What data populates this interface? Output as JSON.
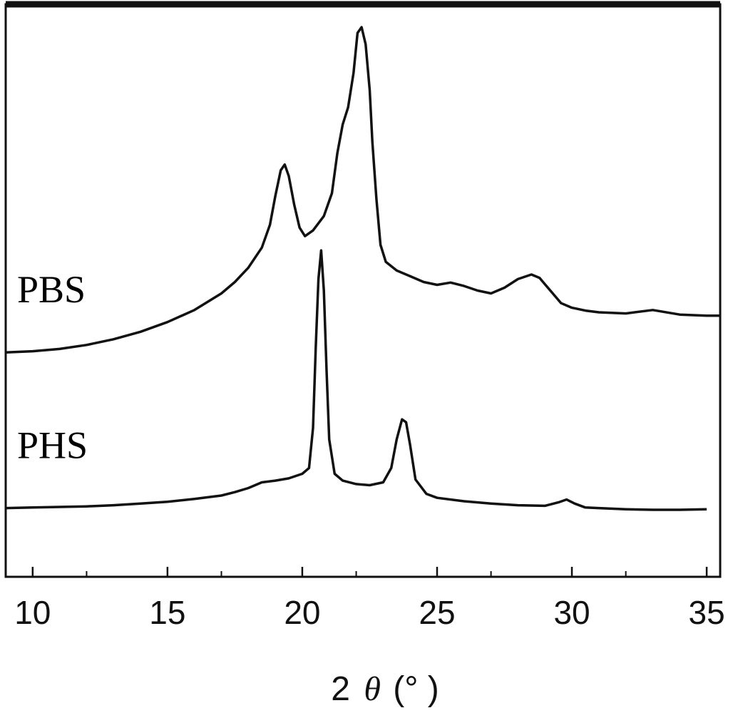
{
  "chart_data": {
    "type": "line",
    "xlabel": "2θ(°  )",
    "xlabel_parts": {
      "prefix": "2",
      "symbol": "θ",
      "suffix": "(°  )"
    },
    "x_ticks": [
      10,
      15,
      20,
      25,
      30,
      35
    ],
    "x_minor_ticks": [
      12,
      17,
      22,
      27,
      32
    ],
    "xlim": [
      9,
      35.5
    ],
    "ylim": [
      0,
      1
    ],
    "y_ticks_shown": false,
    "grid": false,
    "legend": "none (series names placed inline at left)",
    "colors": {
      "line": "#111111",
      "frame": "#111111",
      "background": "#ffffff"
    },
    "series": [
      {
        "name": "PBS",
        "points": [
          [
            9.0,
            0.392
          ],
          [
            10.0,
            0.394
          ],
          [
            11.0,
            0.398
          ],
          [
            12.0,
            0.405
          ],
          [
            13.0,
            0.415
          ],
          [
            14.0,
            0.428
          ],
          [
            15.0,
            0.445
          ],
          [
            16.0,
            0.466
          ],
          [
            17.0,
            0.495
          ],
          [
            17.5,
            0.515
          ],
          [
            18.0,
            0.54
          ],
          [
            18.5,
            0.575
          ],
          [
            18.8,
            0.615
          ],
          [
            19.0,
            0.665
          ],
          [
            19.2,
            0.71
          ],
          [
            19.35,
            0.72
          ],
          [
            19.5,
            0.7
          ],
          [
            19.7,
            0.65
          ],
          [
            19.9,
            0.61
          ],
          [
            20.1,
            0.595
          ],
          [
            20.4,
            0.605
          ],
          [
            20.8,
            0.63
          ],
          [
            21.1,
            0.67
          ],
          [
            21.3,
            0.74
          ],
          [
            21.5,
            0.79
          ],
          [
            21.7,
            0.82
          ],
          [
            21.9,
            0.88
          ],
          [
            22.05,
            0.95
          ],
          [
            22.2,
            0.96
          ],
          [
            22.35,
            0.93
          ],
          [
            22.5,
            0.85
          ],
          [
            22.6,
            0.76
          ],
          [
            22.75,
            0.66
          ],
          [
            22.9,
            0.58
          ],
          [
            23.1,
            0.55
          ],
          [
            23.5,
            0.535
          ],
          [
            24.0,
            0.525
          ],
          [
            24.5,
            0.515
          ],
          [
            25.0,
            0.51
          ],
          [
            25.5,
            0.514
          ],
          [
            26.0,
            0.508
          ],
          [
            26.5,
            0.5
          ],
          [
            27.0,
            0.495
          ],
          [
            27.5,
            0.505
          ],
          [
            28.0,
            0.52
          ],
          [
            28.5,
            0.528
          ],
          [
            28.8,
            0.522
          ],
          [
            29.2,
            0.5
          ],
          [
            29.6,
            0.478
          ],
          [
            30.0,
            0.47
          ],
          [
            30.5,
            0.465
          ],
          [
            31.0,
            0.462
          ],
          [
            32.0,
            0.46
          ],
          [
            33.0,
            0.466
          ],
          [
            34.0,
            0.458
          ],
          [
            35.0,
            0.456
          ],
          [
            35.5,
            0.456
          ]
        ]
      },
      {
        "name": "PHS",
        "points": [
          [
            9.0,
            0.12
          ],
          [
            10.0,
            0.121
          ],
          [
            11.0,
            0.122
          ],
          [
            12.0,
            0.123
          ],
          [
            13.0,
            0.125
          ],
          [
            14.0,
            0.128
          ],
          [
            15.0,
            0.131
          ],
          [
            16.0,
            0.136
          ],
          [
            17.0,
            0.142
          ],
          [
            17.5,
            0.148
          ],
          [
            18.0,
            0.155
          ],
          [
            18.5,
            0.165
          ],
          [
            19.0,
            0.168
          ],
          [
            19.5,
            0.172
          ],
          [
            20.0,
            0.18
          ],
          [
            20.25,
            0.19
          ],
          [
            20.4,
            0.26
          ],
          [
            20.5,
            0.4
          ],
          [
            20.6,
            0.52
          ],
          [
            20.7,
            0.57
          ],
          [
            20.8,
            0.5
          ],
          [
            20.9,
            0.36
          ],
          [
            21.0,
            0.24
          ],
          [
            21.2,
            0.18
          ],
          [
            21.5,
            0.168
          ],
          [
            22.0,
            0.162
          ],
          [
            22.5,
            0.16
          ],
          [
            23.0,
            0.165
          ],
          [
            23.3,
            0.19
          ],
          [
            23.5,
            0.24
          ],
          [
            23.7,
            0.275
          ],
          [
            23.85,
            0.27
          ],
          [
            24.0,
            0.23
          ],
          [
            24.2,
            0.17
          ],
          [
            24.6,
            0.145
          ],
          [
            25.0,
            0.138
          ],
          [
            26.0,
            0.132
          ],
          [
            27.0,
            0.128
          ],
          [
            28.0,
            0.125
          ],
          [
            29.0,
            0.124
          ],
          [
            29.5,
            0.13
          ],
          [
            29.8,
            0.135
          ],
          [
            30.1,
            0.128
          ],
          [
            30.5,
            0.121
          ],
          [
            31.0,
            0.12
          ],
          [
            32.0,
            0.118
          ],
          [
            33.0,
            0.117
          ],
          [
            34.0,
            0.117
          ],
          [
            35.0,
            0.118
          ]
        ]
      }
    ]
  }
}
